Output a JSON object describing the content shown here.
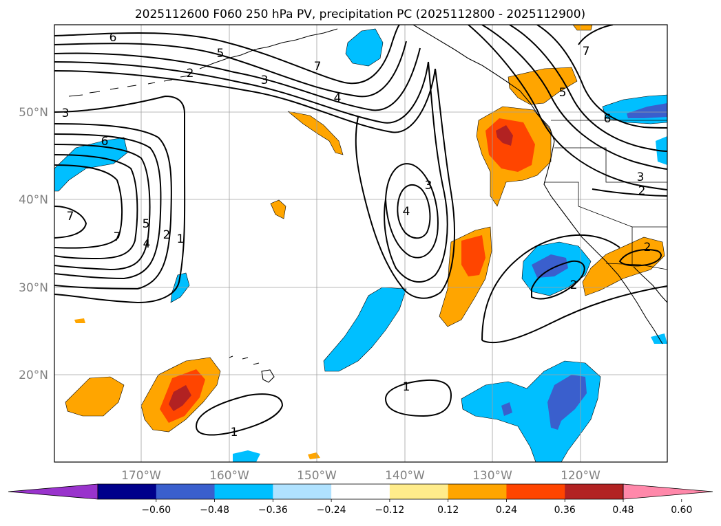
{
  "title": "2025112600 F060 250 hPa PV, precipitation PC (2025112800 - 2025112900)",
  "map": {
    "lat_labels": [
      "50°N",
      "40°N",
      "30°N",
      "20°N"
    ],
    "lon_labels": [
      "170°W",
      "160°W",
      "150°W",
      "140°W",
      "130°W",
      "120°W"
    ],
    "pv_contour_labels": [
      "6",
      "5",
      "2",
      "7",
      "3",
      "4",
      "3",
      "6",
      "7",
      "7",
      "4",
      "5",
      "2",
      "1",
      "3",
      "4",
      "7",
      "5",
      "6",
      "3",
      "2",
      "2",
      "2",
      "1",
      "1"
    ]
  },
  "colorbar": {
    "ticks": [
      "−0.60",
      "−0.48",
      "−0.36",
      "−0.24",
      "−0.12",
      "0.12",
      "0.24",
      "0.36",
      "0.48",
      "0.60"
    ],
    "colors": [
      "#9933cc",
      "#00008b",
      "#3a5fcd",
      "#00bfff",
      "#b0e2ff",
      "#ffffff",
      "#ffec8b",
      "#ffa500",
      "#ff4500",
      "#b22222",
      "#ff88aa"
    ]
  }
}
